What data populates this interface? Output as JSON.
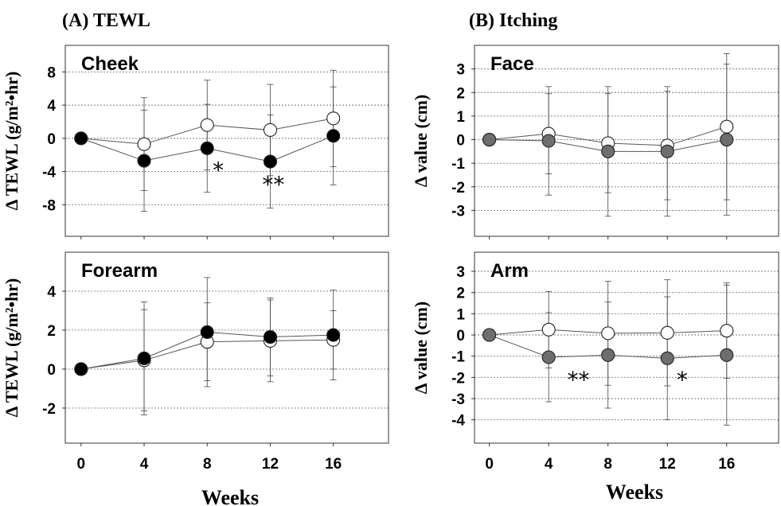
{
  "figure": {
    "panel_a_title": "(A) TEWL",
    "panel_b_title": "(B) Itching",
    "xlabel_left": "Weeks",
    "xlabel_right": "Weeks"
  },
  "chart_data": [
    {
      "id": "cheek",
      "type": "line",
      "title": "Cheek",
      "ylabel": "Δ TEWL  (g/m²•hr)",
      "xlabel": "",
      "x": [
        0,
        4,
        8,
        12,
        16
      ],
      "xlim": [
        -1,
        19.5
      ],
      "ylim": [
        -11.8,
        11.2
      ],
      "yticks": [
        -8,
        -4,
        0,
        4,
        8
      ],
      "grid": true,
      "show_x_ticklabels": false,
      "series": [
        {
          "fill": "#ffffff",
          "values": [
            0,
            -0.7,
            1.6,
            1.0,
            2.4
          ],
          "err": [
            0,
            5.6,
            5.4,
            5.5,
            5.8
          ]
        },
        {
          "fill": "#000000",
          "values": [
            0,
            -2.7,
            -1.2,
            -2.8,
            0.3
          ],
          "err": [
            0,
            6.1,
            5.3,
            5.6,
            5.9
          ]
        }
      ],
      "annotations": [
        {
          "text": "*",
          "x": 8.7,
          "y": -3.8
        },
        {
          "text": "**",
          "x": 12.2,
          "y": -5.5
        }
      ]
    },
    {
      "id": "forearm",
      "type": "line",
      "title": "Forearm",
      "ylabel": "Δ TEWL  (g/m²•hr)",
      "xlabel": "",
      "x": [
        0,
        4,
        8,
        12,
        16
      ],
      "xlim": [
        -1,
        19.5
      ],
      "ylim": [
        -3.8,
        6.0
      ],
      "yticks": [
        -2,
        0,
        2,
        4
      ],
      "grid": true,
      "show_x_ticklabels": true,
      "series": [
        {
          "fill": "#ffffff",
          "values": [
            0,
            0.45,
            1.4,
            1.45,
            1.5
          ],
          "err": [
            0,
            2.6,
            2.0,
            2.1,
            1.5
          ]
        },
        {
          "fill": "#000000",
          "values": [
            0,
            0.55,
            1.9,
            1.65,
            1.75
          ],
          "err": [
            0,
            2.9,
            2.8,
            2.0,
            2.3
          ]
        }
      ],
      "annotations": []
    },
    {
      "id": "face",
      "type": "line",
      "title": "Face",
      "ylabel": "Δ value (cm)",
      "xlabel": "",
      "x": [
        0,
        4,
        8,
        12,
        16
      ],
      "xlim": [
        -1,
        19.5
      ],
      "ylim": [
        -4.1,
        4.0
      ],
      "yticks": [
        -3,
        -2,
        -1,
        0,
        1,
        2,
        3
      ],
      "grid": true,
      "show_x_ticklabels": false,
      "series": [
        {
          "fill": "#ffffff",
          "values": [
            0,
            0.25,
            -0.15,
            -0.25,
            0.55
          ],
          "err": [
            0,
            1.7,
            2.1,
            2.3,
            3.1
          ]
        },
        {
          "fill": "#6e6e6e",
          "values": [
            0,
            -0.05,
            -0.5,
            -0.5,
            0.0
          ],
          "err": [
            0,
            2.3,
            2.75,
            2.75,
            3.2
          ]
        }
      ],
      "annotations": []
    },
    {
      "id": "arm",
      "type": "line",
      "title": "Arm",
      "ylabel": "Δ value (cm)",
      "xlabel": "",
      "x": [
        0,
        4,
        8,
        12,
        16
      ],
      "xlim": [
        -1,
        19.5
      ],
      "ylim": [
        -5.1,
        3.9
      ],
      "yticks": [
        -4,
        -3,
        -2,
        -1,
        0,
        1,
        2,
        3
      ],
      "grid": true,
      "show_x_ticklabels": true,
      "series": [
        {
          "fill": "#ffffff",
          "values": [
            0,
            0.25,
            0.08,
            0.1,
            0.2
          ],
          "err": [
            0,
            1.8,
            2.45,
            2.5,
            2.25
          ]
        },
        {
          "fill": "#6e6e6e",
          "values": [
            0,
            -1.05,
            -0.95,
            -1.1,
            -0.95
          ],
          "err": [
            0,
            2.1,
            2.5,
            2.9,
            3.3
          ]
        }
      ],
      "annotations": [
        {
          "text": "**",
          "x": 6.0,
          "y": -2.1
        },
        {
          "text": "*",
          "x": 13.0,
          "y": -2.1
        }
      ]
    }
  ]
}
